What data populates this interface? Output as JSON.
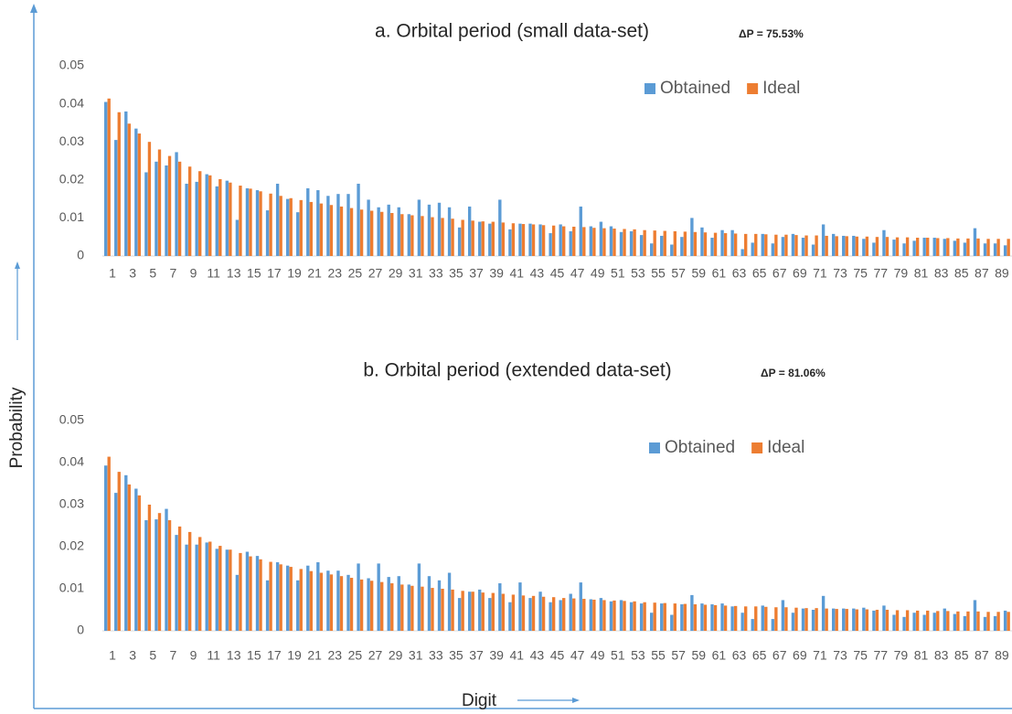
{
  "xlabel": "Digit",
  "ylabel": "Probability",
  "chart_data": [
    {
      "type": "bar",
      "title": "a.   Orbital period (small data-set)",
      "annotation": "ΔP = 75.53%",
      "categories": [
        1,
        null,
        3,
        null,
        5,
        null,
        7,
        null,
        9,
        null,
        11,
        null,
        13,
        null,
        15,
        null,
        17,
        null,
        19,
        null,
        21,
        null,
        23,
        null,
        25,
        null,
        27,
        null,
        29,
        null,
        31,
        null,
        33,
        null,
        35,
        null,
        37,
        null,
        39,
        null,
        41,
        null,
        43,
        null,
        45,
        null,
        47,
        null,
        49,
        null,
        51,
        null,
        53,
        null,
        55,
        null,
        57,
        null,
        59,
        null,
        61,
        null,
        63,
        null,
        65,
        null,
        67,
        null,
        69,
        null,
        71,
        null,
        73,
        null,
        75,
        null,
        77,
        null,
        79,
        null,
        81,
        null,
        83,
        null,
        85,
        null,
        87,
        null,
        89,
        null
      ],
      "series": [
        {
          "name": "Obtained",
          "color": "#5b9bd5",
          "values": [
            0.0405,
            0.0305,
            0.038,
            0.0335,
            0.022,
            0.0248,
            0.0238,
            0.0273,
            0.019,
            0.0195,
            0.0215,
            0.0183,
            0.0198,
            0.0095,
            0.0178,
            0.0173,
            0.012,
            0.019,
            0.015,
            0.0115,
            0.0178,
            0.0173,
            0.0158,
            0.0163,
            0.0163,
            0.019,
            0.0148,
            0.0128,
            0.0135,
            0.0128,
            0.011,
            0.0148,
            0.0135,
            0.014,
            0.0128,
            0.0075,
            0.013,
            0.009,
            0.0085,
            0.0148,
            0.007,
            0.0085,
            0.0085,
            0.0083,
            0.006,
            0.0083,
            0.0065,
            0.013,
            0.0078,
            0.009,
            0.0078,
            0.0063,
            0.0065,
            0.0055,
            0.0033,
            0.0053,
            0.003,
            0.005,
            0.01,
            0.0075,
            0.0048,
            0.0068,
            0.0068,
            0.0018,
            0.0035,
            0.0058,
            0.0033,
            0.005,
            0.0058,
            0.0048,
            0.003,
            0.0083,
            0.0058,
            0.0053,
            0.0053,
            0.0045,
            0.0035,
            0.0068,
            0.0043,
            0.0033,
            0.004,
            0.0048,
            0.0048,
            0.0045,
            0.004,
            0.0035,
            0.0073,
            0.0033,
            0.0033,
            0.0028
          ]
        },
        {
          "name": "Ideal",
          "color": "#ed7d31",
          "values": [
            0.0414,
            0.0378,
            0.0348,
            0.0322,
            0.03,
            0.028,
            0.0263,
            0.0248,
            0.0235,
            0.0223,
            0.0212,
            0.0202,
            0.0193,
            0.0185,
            0.0177,
            0.017,
            0.0164,
            0.0158,
            0.0152,
            0.0147,
            0.0142,
            0.0138,
            0.0134,
            0.013,
            0.0126,
            0.0122,
            0.0119,
            0.0116,
            0.0113,
            0.011,
            0.0107,
            0.0105,
            0.0102,
            0.01,
            0.0098,
            0.0095,
            0.0093,
            0.0091,
            0.009,
            0.0088,
            0.0086,
            0.0084,
            0.0083,
            0.0081,
            0.008,
            0.0078,
            0.0077,
            0.0076,
            0.0074,
            0.0073,
            0.0072,
            0.0071,
            0.007,
            0.0068,
            0.0067,
            0.0066,
            0.0065,
            0.0064,
            0.0063,
            0.0062,
            0.0061,
            0.006,
            0.0059,
            0.0058,
            0.0058,
            0.0057,
            0.0056,
            0.0056,
            0.0055,
            0.0054,
            0.0054,
            0.0053,
            0.0052,
            0.0052,
            0.0051,
            0.0051,
            0.005,
            0.005,
            0.0049,
            0.0049,
            0.0048,
            0.0048,
            0.0047,
            0.0047,
            0.0046,
            0.0046,
            0.0046,
            0.0045,
            0.0045,
            0.0045
          ]
        }
      ],
      "ylim": [
        0,
        0.05
      ],
      "yticks": [
        0,
        0.01,
        0.02,
        0.03,
        0.04,
        0.05
      ]
    },
    {
      "type": "bar",
      "title": "b.   Orbital period (extended data-set)",
      "annotation": "ΔP = 81.06%",
      "categories": [
        1,
        null,
        3,
        null,
        5,
        null,
        7,
        null,
        9,
        null,
        11,
        null,
        13,
        null,
        15,
        null,
        17,
        null,
        19,
        null,
        21,
        null,
        23,
        null,
        25,
        null,
        27,
        null,
        29,
        null,
        31,
        null,
        33,
        null,
        35,
        null,
        37,
        null,
        39,
        null,
        41,
        null,
        43,
        null,
        45,
        null,
        47,
        null,
        49,
        null,
        51,
        null,
        53,
        null,
        55,
        null,
        57,
        null,
        59,
        null,
        61,
        null,
        63,
        null,
        65,
        null,
        67,
        null,
        69,
        null,
        71,
        null,
        73,
        null,
        75,
        null,
        77,
        null,
        79,
        null,
        81,
        null,
        83,
        null,
        85,
        null,
        87,
        null,
        89,
        null
      ],
      "series": [
        {
          "name": "Obtained",
          "color": "#5b9bd5",
          "values": [
            0.0393,
            0.0328,
            0.037,
            0.0338,
            0.0263,
            0.0265,
            0.029,
            0.0228,
            0.0205,
            0.0205,
            0.021,
            0.0195,
            0.0193,
            0.0133,
            0.0188,
            0.0178,
            0.012,
            0.0163,
            0.0155,
            0.012,
            0.0155,
            0.0163,
            0.0143,
            0.0143,
            0.0133,
            0.016,
            0.0125,
            0.016,
            0.0128,
            0.013,
            0.011,
            0.016,
            0.013,
            0.012,
            0.0138,
            0.0078,
            0.0093,
            0.0098,
            0.0078,
            0.0113,
            0.0068,
            0.0115,
            0.0078,
            0.0093,
            0.0068,
            0.0073,
            0.0088,
            0.0115,
            0.0075,
            0.0078,
            0.007,
            0.0073,
            0.0068,
            0.0065,
            0.0043,
            0.0065,
            0.0038,
            0.0063,
            0.0085,
            0.0065,
            0.0063,
            0.0065,
            0.0058,
            0.0043,
            0.0028,
            0.006,
            0.0028,
            0.0073,
            0.0043,
            0.0053,
            0.005,
            0.0083,
            0.0053,
            0.0053,
            0.0053,
            0.0055,
            0.0048,
            0.006,
            0.0038,
            0.0033,
            0.0043,
            0.0038,
            0.0043,
            0.0053,
            0.004,
            0.0035,
            0.0073,
            0.0033,
            0.0035,
            0.0048
          ]
        },
        {
          "name": "Ideal",
          "color": "#ed7d31",
          "values": [
            0.0414,
            0.0378,
            0.0348,
            0.0322,
            0.03,
            0.028,
            0.0263,
            0.0248,
            0.0235,
            0.0223,
            0.0212,
            0.0202,
            0.0193,
            0.0185,
            0.0177,
            0.017,
            0.0164,
            0.0158,
            0.0152,
            0.0147,
            0.0142,
            0.0138,
            0.0134,
            0.013,
            0.0126,
            0.0122,
            0.0119,
            0.0116,
            0.0113,
            0.011,
            0.0107,
            0.0105,
            0.0102,
            0.01,
            0.0098,
            0.0095,
            0.0093,
            0.0091,
            0.009,
            0.0088,
            0.0086,
            0.0084,
            0.0083,
            0.0081,
            0.008,
            0.0078,
            0.0077,
            0.0076,
            0.0074,
            0.0073,
            0.0072,
            0.0071,
            0.007,
            0.0068,
            0.0067,
            0.0066,
            0.0065,
            0.0064,
            0.0063,
            0.0062,
            0.0061,
            0.006,
            0.0059,
            0.0058,
            0.0058,
            0.0057,
            0.0056,
            0.0056,
            0.0055,
            0.0054,
            0.0054,
            0.0053,
            0.0052,
            0.0052,
            0.0051,
            0.0051,
            0.005,
            0.005,
            0.0049,
            0.0049,
            0.0048,
            0.0048,
            0.0047,
            0.0047,
            0.0046,
            0.0046,
            0.0046,
            0.0045,
            0.0045,
            0.0045
          ]
        }
      ],
      "ylim": [
        0,
        0.05
      ],
      "yticks": [
        0,
        0.01,
        0.02,
        0.03,
        0.04,
        0.05
      ]
    }
  ]
}
